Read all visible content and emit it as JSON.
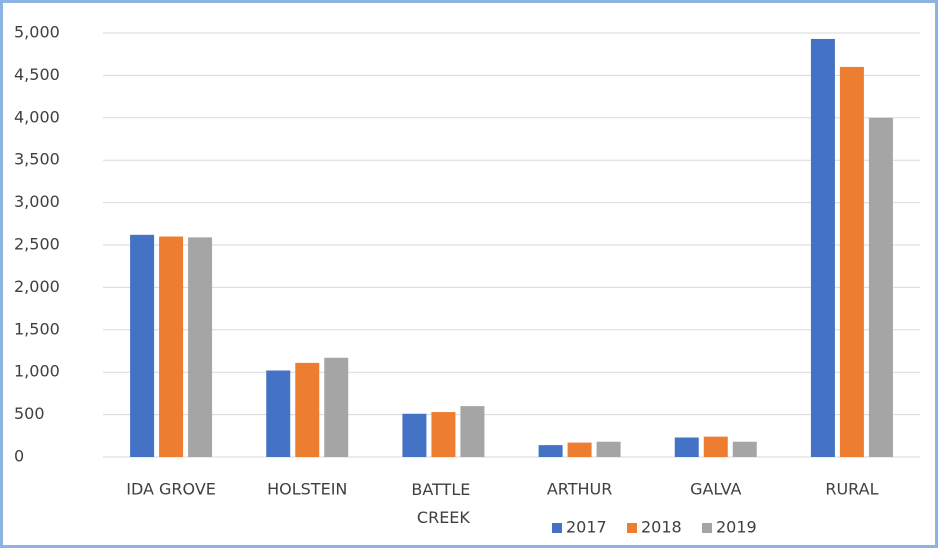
{
  "chart_data": {
    "type": "bar",
    "categories": [
      "IDA GROVE",
      "HOLSTEIN",
      "BATTLE CREEK",
      "ARTHUR",
      "GALVA",
      "RURAL"
    ],
    "series": [
      {
        "name": "2017",
        "color": "#4472c4",
        "values": [
          2620,
          1020,
          510,
          140,
          230,
          4930
        ]
      },
      {
        "name": "2018",
        "color": "#ed7d31",
        "values": [
          2600,
          1110,
          530,
          170,
          240,
          4600
        ]
      },
      {
        "name": "2019",
        "color": "#a5a5a5",
        "values": [
          2590,
          1170,
          600,
          180,
          180,
          4000
        ]
      }
    ],
    "ylim": [
      0,
      5000
    ],
    "yticks": [
      0,
      500,
      {
        "value": 1000,
        "label": "1,000"
      },
      {
        "value": 1500,
        "label": "1,500"
      },
      {
        "value": 2000,
        "label": "2,000"
      },
      {
        "value": 2500,
        "label": "2,500"
      },
      {
        "value": 3000,
        "label": "3,000"
      },
      {
        "value": 3500,
        "label": "3,500"
      },
      {
        "value": 4000,
        "label": "4,000"
      },
      {
        "value": 4500,
        "label": "4,500"
      },
      {
        "value": 5000,
        "label": "5,000"
      }
    ],
    "grid": true,
    "legend": "bottom"
  }
}
